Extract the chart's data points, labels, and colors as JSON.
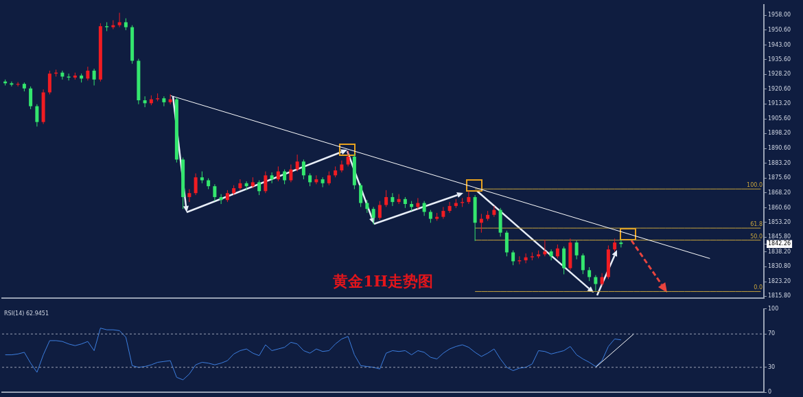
{
  "chart_data": [
    {
      "type": "candlestick",
      "title": "黄金1H走势图",
      "categories": [
        null,
        null,
        null,
        null,
        null,
        null,
        null,
        null,
        null,
        null,
        null,
        null,
        null,
        null,
        null,
        null,
        null,
        null,
        null,
        null,
        null,
        null,
        null,
        null,
        null,
        null,
        null,
        null,
        null,
        null,
        null,
        null,
        null,
        null,
        null,
        null,
        null,
        null,
        null,
        null,
        null,
        null,
        null,
        null,
        null,
        null,
        null,
        null,
        null,
        null,
        null,
        null,
        null,
        null,
        null,
        null,
        null,
        null,
        null,
        null,
        null,
        null,
        null,
        null,
        null,
        null,
        null,
        null,
        null,
        null,
        null,
        null,
        null,
        null,
        null,
        null,
        null,
        null,
        null,
        null,
        null,
        null,
        null,
        null,
        null,
        null,
        null,
        null,
        null,
        null,
        null,
        null,
        null,
        null,
        null,
        null,
        null,
        null,
        null,
        null,
        null,
        null,
        null,
        null,
        null,
        null,
        null,
        null,
        null,
        null,
        null,
        null,
        null,
        null,
        null,
        null,
        null,
        null,
        null,
        null
      ],
      "ohlc": [
        [
          1924.5,
          1925.5,
          1922.5,
          1923.6
        ],
        [
          1923.6,
          1924.5,
          1922.0,
          1922.9
        ],
        [
          1922.9,
          1924.2,
          1922.0,
          1923.3
        ],
        [
          1923.3,
          1924.0,
          1919.5,
          1921.0
        ],
        [
          1921.0,
          1922.0,
          1910.5,
          1912.0
        ],
        [
          1912.0,
          1913.0,
          1901.7,
          1904.0
        ],
        [
          1904.0,
          1920.5,
          1903.0,
          1919.0
        ],
        [
          1919.0,
          1930.0,
          1918.0,
          1928.5
        ],
        [
          1928.5,
          1930.5,
          1927.0,
          1929.0
        ],
        [
          1929.0,
          1930.0,
          1925.5,
          1927.0
        ],
        [
          1927.0,
          1928.5,
          1925.0,
          1926.5
        ],
        [
          1926.5,
          1929.0,
          1925.5,
          1927.5
        ],
        [
          1927.5,
          1928.5,
          1924.0,
          1926.0
        ],
        [
          1926.0,
          1932.0,
          1925.0,
          1930.0
        ],
        [
          1930.0,
          1931.0,
          1922.5,
          1925.5
        ],
        [
          1925.5,
          1954.0,
          1924.5,
          1952.5
        ],
        [
          1952.5,
          1954.5,
          1950.0,
          1952.0
        ],
        [
          1952.0,
          1955.5,
          1951.0,
          1953.0
        ],
        [
          1953.0,
          1959.3,
          1952.0,
          1954.5
        ],
        [
          1954.5,
          1956.5,
          1950.5,
          1952.0
        ],
        [
          1952.0,
          1953.0,
          1933.5,
          1935.0
        ],
        [
          1935.0,
          1936.0,
          1913.0,
          1915.0
        ],
        [
          1915.0,
          1917.0,
          1911.5,
          1913.5
        ],
        [
          1913.5,
          1917.5,
          1912.5,
          1915.5
        ],
        [
          1915.5,
          1918.5,
          1914.5,
          1916.0
        ],
        [
          1916.0,
          1917.0,
          1912.0,
          1914.0
        ],
        [
          1914.0,
          1918.0,
          1913.0,
          1915.5
        ],
        [
          1915.5,
          1916.5,
          1883.5,
          1885.0
        ],
        [
          1885.0,
          1886.0,
          1860.0,
          1866.0
        ],
        [
          1866.0,
          1870.0,
          1863.5,
          1868.0
        ],
        [
          1868.0,
          1878.0,
          1867.0,
          1876.0
        ],
        [
          1876.0,
          1879.0,
          1873.0,
          1874.5
        ],
        [
          1874.5,
          1875.5,
          1870.0,
          1871.5
        ],
        [
          1871.5,
          1872.5,
          1864.0,
          1866.0
        ],
        [
          1866.0,
          1867.5,
          1862.5,
          1864.5
        ],
        [
          1864.5,
          1869.5,
          1863.5,
          1868.0
        ],
        [
          1868.0,
          1872.0,
          1867.0,
          1870.5
        ],
        [
          1870.5,
          1875.0,
          1869.5,
          1873.0
        ],
        [
          1873.0,
          1874.0,
          1869.5,
          1871.5
        ],
        [
          1871.5,
          1876.0,
          1870.5,
          1873.5
        ],
        [
          1873.5,
          1874.5,
          1867.0,
          1869.0
        ],
        [
          1869.0,
          1879.0,
          1868.0,
          1877.0
        ],
        [
          1877.0,
          1878.5,
          1873.0,
          1875.0
        ],
        [
          1875.0,
          1881.5,
          1874.0,
          1879.0
        ],
        [
          1879.0,
          1880.0,
          1872.5,
          1874.5
        ],
        [
          1874.5,
          1882.5,
          1873.5,
          1880.0
        ],
        [
          1880.0,
          1887.5,
          1879.0,
          1884.0
        ],
        [
          1884.0,
          1885.0,
          1875.0,
          1877.0
        ],
        [
          1877.0,
          1878.0,
          1871.5,
          1873.5
        ],
        [
          1873.5,
          1877.0,
          1872.5,
          1875.0
        ],
        [
          1875.0,
          1876.0,
          1871.0,
          1873.0
        ],
        [
          1873.0,
          1879.0,
          1872.0,
          1877.0
        ],
        [
          1877.0,
          1881.5,
          1876.0,
          1879.5
        ],
        [
          1879.5,
          1884.5,
          1878.5,
          1882.5
        ],
        [
          1882.5,
          1889.5,
          1881.5,
          1886.5
        ],
        [
          1886.5,
          1888.0,
          1870.0,
          1872.0
        ],
        [
          1872.0,
          1873.0,
          1861.0,
          1863.0
        ],
        [
          1863.0,
          1864.5,
          1858.0,
          1860.0
        ],
        [
          1860.0,
          1861.0,
          1852.2,
          1855.5
        ],
        [
          1855.5,
          1864.0,
          1854.5,
          1862.0
        ],
        [
          1862.0,
          1869.5,
          1861.0,
          1866.0
        ],
        [
          1866.0,
          1868.0,
          1861.5,
          1863.5
        ],
        [
          1863.5,
          1867.5,
          1862.5,
          1865.0
        ],
        [
          1865.0,
          1866.0,
          1860.5,
          1862.5
        ],
        [
          1862.5,
          1864.0,
          1859.0,
          1861.0
        ],
        [
          1861.0,
          1865.5,
          1860.0,
          1863.0
        ],
        [
          1863.0,
          1864.0,
          1856.5,
          1858.5
        ],
        [
          1858.5,
          1859.5,
          1853.0,
          1855.0
        ],
        [
          1855.0,
          1858.0,
          1854.0,
          1856.0
        ],
        [
          1856.0,
          1861.0,
          1855.0,
          1859.0
        ],
        [
          1859.0,
          1863.5,
          1858.0,
          1861.5
        ],
        [
          1861.5,
          1865.0,
          1860.5,
          1863.0
        ],
        [
          1863.0,
          1865.5,
          1861.0,
          1863.5
        ],
        [
          1863.5,
          1869.0,
          1862.5,
          1866.0
        ],
        [
          1866.0,
          1867.0,
          1843.8,
          1853.0
        ],
        [
          1853.0,
          1857.5,
          1848.0,
          1855.0
        ],
        [
          1855.0,
          1859.0,
          1854.0,
          1857.0
        ],
        [
          1857.0,
          1861.5,
          1856.0,
          1859.5
        ],
        [
          1859.5,
          1860.5,
          1846.0,
          1848.0
        ],
        [
          1848.0,
          1849.0,
          1836.0,
          1838.0
        ],
        [
          1838.0,
          1839.0,
          1831.5,
          1833.5
        ],
        [
          1833.5,
          1836.0,
          1832.0,
          1834.0
        ],
        [
          1834.0,
          1837.5,
          1832.5,
          1835.5
        ],
        [
          1835.5,
          1838.0,
          1834.0,
          1836.0
        ],
        [
          1836.0,
          1839.0,
          1835.0,
          1837.0
        ],
        [
          1837.0,
          1844.5,
          1836.0,
          1838.5
        ],
        [
          1838.5,
          1839.5,
          1834.0,
          1836.0
        ],
        [
          1836.0,
          1842.0,
          1835.0,
          1840.0
        ],
        [
          1840.0,
          1841.0,
          1826.9,
          1830.0
        ],
        [
          1830.0,
          1845.0,
          1829.0,
          1843.0
        ],
        [
          1843.0,
          1844.0,
          1834.5,
          1836.5
        ],
        [
          1836.5,
          1837.5,
          1827.0,
          1829.0
        ],
        [
          1829.0,
          1830.5,
          1823.5,
          1825.5
        ],
        [
          1825.5,
          1826.5,
          1818.5,
          1822.0
        ],
        [
          1822.0,
          1827.5,
          1821.0,
          1825.5
        ],
        [
          1825.5,
          1841.5,
          1824.5,
          1839.5
        ],
        [
          1839.5,
          1845.0,
          1838.5,
          1843.0
        ],
        [
          1843.0,
          1844.5,
          1840.5,
          1842.26
        ],
        null,
        null,
        null,
        null,
        null,
        null,
        null,
        null,
        null,
        null,
        null,
        null,
        null,
        null,
        null,
        null,
        null,
        null,
        null,
        null,
        null,
        null
      ],
      "colors": [
        "#34e66e",
        "#34e66e",
        "#f01c22",
        "#34e66e",
        "#34e66e",
        "#34e66e",
        "#f01c22",
        "#f01c22",
        "#f01c22",
        "#34e66e",
        "#34e66e",
        "#f01c22",
        "#34e66e",
        "#f01c22",
        "#34e66e",
        "#f01c22",
        "#34e66e",
        "#f01c22",
        "#f01c22",
        "#34e66e",
        "#34e66e",
        "#34e66e",
        "#34e66e",
        "#f01c22",
        "#f01c22",
        "#34e66e",
        "#f01c22",
        "#34e66e",
        "#34e66e",
        "#f01c22",
        "#f01c22",
        "#34e66e",
        "#34e66e",
        "#34e66e",
        "#34e66e",
        "#f01c22",
        "#f01c22",
        "#f01c22",
        "#34e66e",
        "#f01c22",
        "#34e66e",
        "#f01c22",
        "#34e66e",
        "#f01c22",
        "#34e66e",
        "#f01c22",
        "#f01c22",
        "#34e66e",
        "#34e66e",
        "#f01c22",
        "#34e66e",
        "#f01c22",
        "#f01c22",
        "#f01c22",
        "#f01c22",
        "#34e66e",
        "#34e66e",
        "#34e66e",
        "#34e66e",
        "#f01c22",
        "#f01c22",
        "#34e66e",
        "#f01c22",
        "#34e66e",
        "#34e66e",
        "#f01c22",
        "#34e66e",
        "#34e66e",
        "#f01c22",
        "#f01c22",
        "#f01c22",
        "#f01c22",
        "#f01c22",
        "#f01c22",
        "#34e66e",
        "#f01c22",
        "#f01c22",
        "#f01c22",
        "#34e66e",
        "#34e66e",
        "#34e66e",
        "#f01c22",
        "#f01c22",
        "#f01c22",
        "#f01c22",
        "#f01c22",
        "#34e66e",
        "#f01c22",
        "#34e66e",
        "#f01c22",
        "#34e66e",
        "#34e66e",
        "#34e66e",
        "#34e66e",
        "#f01c22",
        "#f01c22",
        "#f01c22",
        "#34e66e",
        null,
        null,
        null,
        null,
        null,
        null,
        null,
        null,
        null,
        null,
        null,
        null,
        null,
        null,
        null,
        null,
        null,
        null,
        null,
        null,
        null,
        null
      ],
      "series": [
        {
          "type": "line",
          "color": "#ffffff",
          "values": [
            null,
            null,
            null,
            null,
            null,
            null,
            null,
            null,
            null,
            null,
            null,
            null,
            null,
            null,
            null,
            null,
            null,
            null,
            null,
            null,
            null,
            null,
            null,
            null,
            null,
            null,
            1917.4,
            null,
            null,
            null,
            null,
            null,
            null,
            null,
            null,
            null,
            null,
            null,
            null,
            null,
            null,
            null,
            null,
            null,
            null,
            null,
            null,
            null,
            null,
            null,
            null,
            null,
            null,
            null,
            null,
            null,
            null,
            null,
            null,
            null,
            null,
            null,
            null,
            null,
            null,
            null,
            null,
            null,
            null,
            null,
            null,
            null,
            null,
            null,
            null,
            null,
            null,
            null,
            null,
            null,
            null,
            null,
            null,
            null,
            null,
            null,
            null,
            null,
            null,
            null,
            null,
            null,
            null,
            null,
            null,
            null,
            null,
            null,
            null,
            null,
            null,
            null,
            null,
            null,
            null,
            null,
            null,
            null,
            null,
            null,
            null,
            1834.9,
            null,
            null,
            null,
            null,
            null,
            null,
            null,
            null
          ]
        },
        {
          "type": "line",
          "color": "#c9a53c",
          "values": [
            null,
            null,
            null,
            null,
            null,
            null,
            null,
            null,
            null,
            null,
            null,
            null,
            null,
            null,
            null,
            null,
            null,
            null,
            null,
            null,
            null,
            null,
            null,
            null,
            null,
            null,
            null,
            null,
            null,
            null,
            null,
            null,
            null,
            null,
            null,
            null,
            null,
            null,
            null,
            null,
            null,
            null,
            null,
            null,
            null,
            null,
            null,
            null,
            null,
            null,
            null,
            null,
            null,
            null,
            null,
            null,
            null,
            null,
            null,
            null,
            null,
            null,
            null,
            null,
            null,
            null,
            null,
            null,
            null,
            null,
            null,
            null,
            null,
            null,
            1870.1,
            1870.1,
            1870.1,
            1870.1,
            1870.1,
            1870.1,
            1870.1,
            1870.1,
            1870.1,
            1870.1,
            1870.1,
            1870.1,
            1870.1,
            1870.1,
            1870.1,
            1870.1,
            1870.1,
            1870.1,
            1870.1,
            1870.1,
            1870.1,
            1870.1,
            1870.1,
            1870.1,
            1870.1,
            1870.1,
            1870.1,
            1870.1,
            1870.1,
            1870.1,
            1870.1,
            1870.1,
            1870.1,
            1870.1,
            1870.1,
            1870.1,
            1870.1,
            1870.1,
            1870.1,
            1870.1,
            1870.1,
            1870.1,
            1870.1,
            1870.1,
            1870.1,
            1870.1
          ]
        },
        {
          "type": "line",
          "color": "#c9a53c",
          "values": [
            null,
            null,
            null,
            null,
            null,
            null,
            null,
            null,
            null,
            null,
            null,
            null,
            null,
            null,
            null,
            null,
            null,
            null,
            null,
            null,
            null,
            null,
            null,
            null,
            null,
            null,
            null,
            null,
            null,
            null,
            null,
            null,
            null,
            null,
            null,
            null,
            null,
            null,
            null,
            null,
            null,
            null,
            null,
            null,
            null,
            null,
            null,
            null,
            null,
            null,
            null,
            null,
            null,
            null,
            null,
            null,
            null,
            null,
            null,
            null,
            null,
            null,
            null,
            null,
            null,
            null,
            null,
            null,
            null,
            null,
            null,
            null,
            null,
            null,
            1850.3,
            1850.3,
            1850.3,
            1850.3,
            1850.3,
            1850.3,
            1850.3,
            1850.3,
            1850.3,
            1850.3,
            1850.3,
            1850.3,
            1850.3,
            1850.3,
            1850.3,
            1850.3,
            1850.3,
            1850.3,
            1850.3,
            1850.3,
            1850.3,
            1850.3,
            1850.3,
            1850.3,
            1850.3,
            1850.3,
            1850.3,
            1850.3,
            1850.3,
            1850.3,
            1850.3,
            1850.3,
            1850.3,
            1850.3,
            1850.3,
            1850.3,
            1850.3,
            1850.3,
            1850.3,
            1850.3,
            1850.3,
            1850.3,
            1850.3,
            1850.3,
            1850.3,
            1850.3
          ]
        },
        {
          "type": "line",
          "color": "#c9a53c",
          "values": [
            null,
            null,
            null,
            null,
            null,
            null,
            null,
            null,
            null,
            null,
            null,
            null,
            null,
            null,
            null,
            null,
            null,
            null,
            null,
            null,
            null,
            null,
            null,
            null,
            null,
            null,
            null,
            null,
            null,
            null,
            null,
            null,
            null,
            null,
            null,
            null,
            null,
            null,
            null,
            null,
            null,
            null,
            null,
            null,
            null,
            null,
            null,
            null,
            null,
            null,
            null,
            null,
            null,
            null,
            null,
            null,
            null,
            null,
            null,
            null,
            null,
            null,
            null,
            null,
            null,
            null,
            null,
            null,
            null,
            null,
            null,
            null,
            null,
            null,
            1844.2,
            1844.2,
            1844.2,
            1844.2,
            1844.2,
            1844.2,
            1844.2,
            1844.2,
            1844.2,
            1844.2,
            1844.2,
            1844.2,
            1844.2,
            1844.2,
            1844.2,
            1844.2,
            1844.2,
            1844.2,
            1844.2,
            1844.2,
            1844.2,
            1844.2,
            1844.2,
            1844.2,
            1844.2,
            1844.2,
            1844.2,
            1844.2,
            1844.2,
            1844.2,
            1844.2,
            1844.2,
            1844.2,
            1844.2,
            1844.2,
            1844.2,
            1844.2,
            1844.2,
            1844.2,
            1844.2,
            1844.2,
            1844.2,
            1844.2,
            1844.2,
            1844.2,
            1844.2
          ]
        },
        {
          "type": "line",
          "color": "#c9a53c",
          "values": [
            null,
            null,
            null,
            null,
            null,
            null,
            null,
            null,
            null,
            null,
            null,
            null,
            null,
            null,
            null,
            null,
            null,
            null,
            null,
            null,
            null,
            null,
            null,
            null,
            null,
            null,
            null,
            null,
            null,
            null,
            null,
            null,
            null,
            null,
            null,
            null,
            null,
            null,
            null,
            null,
            null,
            null,
            null,
            null,
            null,
            null,
            null,
            null,
            null,
            null,
            null,
            null,
            null,
            null,
            null,
            null,
            null,
            null,
            null,
            null,
            null,
            null,
            null,
            null,
            null,
            null,
            null,
            null,
            null,
            null,
            null,
            null,
            null,
            null,
            1818.2,
            1818.2,
            1818.2,
            1818.2,
            1818.2,
            1818.2,
            1818.2,
            1818.2,
            1818.2,
            1818.2,
            1818.2,
            1818.2,
            1818.2,
            1818.2,
            1818.2,
            1818.2,
            1818.2,
            1818.2,
            1818.2,
            1818.2,
            1818.2,
            1818.2,
            1818.2,
            1818.2,
            1818.2,
            1818.2,
            1818.2,
            1818.2,
            1818.2,
            1818.2,
            1818.2,
            1818.2,
            1818.2,
            1818.2,
            1818.2,
            1818.2,
            1818.2,
            1818.2,
            1818.2,
            1818.2,
            1818.2,
            1818.2,
            1818.2,
            1818.2,
            1818.2,
            1818.2
          ]
        }
      ],
      "ylim": [
        1814.8,
        1963.4
      ],
      "yticks": [
        {
          "value": 1815.8,
          "label": "1815.80"
        },
        {
          "value": 1823.2,
          "label": "1823.20"
        },
        {
          "value": 1830.8,
          "label": "1830.80"
        },
        {
          "value": 1838.2,
          "label": "1838.20"
        },
        {
          "value": 1842.26,
          "label": "1842.26"
        },
        {
          "value": 1845.8,
          "label": "1845.80"
        },
        {
          "value": 1853.2,
          "label": "1853.20"
        },
        {
          "value": 1860.6,
          "label": "1860.60"
        },
        {
          "value": 1868.2,
          "label": "1868.20"
        },
        {
          "value": 1875.6,
          "label": "1875.60"
        },
        {
          "value": 1883.2,
          "label": "1883.20"
        },
        {
          "value": 1890.6,
          "label": "1890.60"
        },
        {
          "value": 1898.2,
          "label": "1898.20"
        },
        {
          "value": 1905.6,
          "label": "1905.60"
        },
        {
          "value": 1913.2,
          "label": "1913.20"
        },
        {
          "value": 1920.6,
          "label": "1920.60"
        },
        {
          "value": 1928.2,
          "label": "1928.20"
        },
        {
          "value": 1935.6,
          "label": "1935.60"
        },
        {
          "value": 1943,
          "label": "1943.00"
        },
        {
          "value": 1950.6,
          "label": "1950.60"
        },
        {
          "value": 1958,
          "label": "1958.00"
        }
      ],
      "annotations": [
        {
          "text": "100.0",
          "y": 1870.1
        },
        {
          "text": "61.8",
          "y": 1850.3
        },
        {
          "text": "50.0",
          "y": 1844.2
        },
        {
          "text": "0.0",
          "y": 1818.2
        }
      ],
      "marker": "none",
      "legend": false,
      "grid": false,
      "tick_labels": "y"
    },
    {
      "type": "line",
      "title": "RSI(14) 62.9451",
      "categories": [
        null,
        null,
        null,
        null,
        null,
        null,
        null,
        null,
        null,
        null,
        null,
        null,
        null,
        null,
        null,
        null,
        null,
        null,
        null,
        null,
        null,
        null,
        null,
        null,
        null,
        null,
        null,
        null,
        null,
        null,
        null,
        null,
        null,
        null,
        null,
        null,
        null,
        null,
        null,
        null,
        null,
        null,
        null,
        null,
        null,
        null,
        null,
        null,
        null,
        null,
        null,
        null,
        null,
        null,
        null,
        null,
        null,
        null,
        null,
        null,
        null,
        null,
        null,
        null,
        null,
        null,
        null,
        null,
        null,
        null,
        null,
        null,
        null,
        null,
        null,
        null,
        null,
        null,
        null,
        null,
        null,
        null,
        null,
        null,
        null,
        null,
        null,
        null,
        null,
        null,
        null,
        null,
        null,
        null,
        null,
        null,
        null,
        null,
        null,
        null,
        null,
        null,
        null,
        null,
        null,
        null,
        null,
        null,
        null,
        null,
        null,
        null,
        null,
        null,
        null,
        null,
        null,
        null,
        null,
        null
      ],
      "series": [
        {
          "color": "#3d7fe0",
          "values": [
            45,
            45,
            46,
            48,
            35,
            24,
            45,
            62,
            62,
            61,
            58,
            56,
            58,
            61,
            50,
            77,
            75,
            75,
            74,
            66,
            32,
            30,
            31,
            33,
            36,
            37,
            38,
            18,
            15,
            22,
            33,
            36,
            35,
            33,
            35,
            38,
            46,
            50,
            52,
            47,
            44,
            57,
            50,
            52,
            54,
            60,
            58,
            50,
            47,
            52,
            49,
            50,
            58,
            64,
            67,
            45,
            32,
            31,
            30,
            28,
            47,
            50,
            49,
            50,
            45,
            50,
            48,
            42,
            40,
            47,
            52,
            55,
            57,
            54,
            48,
            43,
            47,
            52,
            40,
            30,
            26,
            29,
            30,
            34,
            50,
            49,
            46,
            48,
            50,
            55,
            45,
            40,
            36,
            31,
            38,
            55,
            64,
            62.9451,
            null,
            null,
            null,
            null,
            null,
            null,
            null,
            null,
            null,
            null,
            null,
            null,
            null,
            null,
            null,
            null,
            null,
            null,
            null,
            null,
            null,
            null
          ]
        },
        {
          "color": "#ffffff",
          "values": [
            null,
            null,
            null,
            null,
            null,
            null,
            null,
            null,
            null,
            null,
            null,
            null,
            null,
            null,
            null,
            null,
            null,
            null,
            null,
            null,
            null,
            null,
            null,
            null,
            null,
            null,
            null,
            null,
            null,
            null,
            null,
            null,
            null,
            null,
            null,
            null,
            null,
            null,
            null,
            null,
            null,
            null,
            null,
            null,
            null,
            null,
            null,
            null,
            null,
            null,
            null,
            null,
            null,
            null,
            null,
            null,
            null,
            null,
            null,
            null,
            null,
            null,
            null,
            null,
            null,
            null,
            null,
            null,
            null,
            null,
            null,
            null,
            null,
            null,
            null,
            null,
            null,
            null,
            null,
            null,
            null,
            null,
            null,
            null,
            null,
            null,
            null,
            null,
            null,
            null,
            null,
            null,
            null,
            30,
            null,
            null,
            null,
            null,
            null,
            70,
            null,
            null,
            null,
            null,
            null,
            null,
            null,
            null,
            null,
            null,
            null,
            null,
            null,
            null,
            null,
            null,
            null,
            null,
            null,
            null
          ]
        }
      ],
      "ylim": [
        0,
        100
      ],
      "yticks": [
        0,
        30,
        70,
        100
      ],
      "ref_lines": [
        {
          "axis": "y",
          "value": 30,
          "line_style": "dashed"
        },
        {
          "axis": "y",
          "value": 70,
          "line_style": "dashed"
        }
      ],
      "marker": "none",
      "legend": false,
      "grid": false,
      "tick_labels": "y"
    }
  ]
}
